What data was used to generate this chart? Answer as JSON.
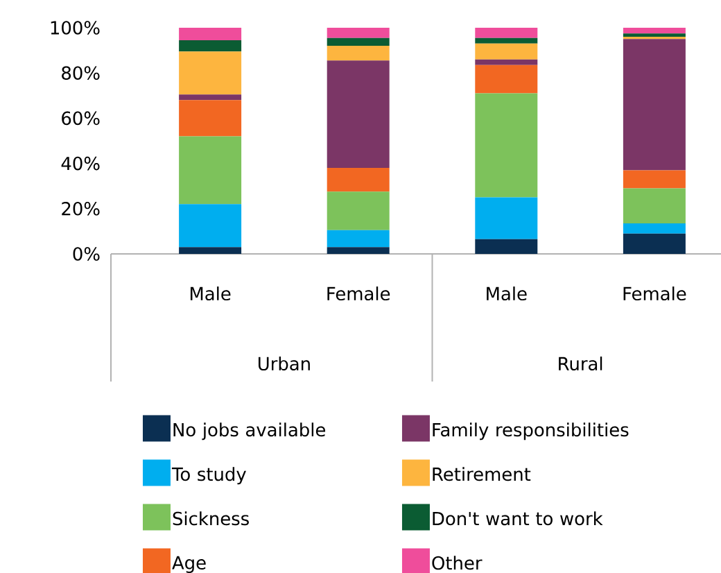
{
  "chart_data": {
    "type": "bar",
    "stacked": true,
    "categories": [
      "Male",
      "Female",
      "Male",
      "Female"
    ],
    "annotations": [
      "Urban",
      "Rural"
    ],
    "series": [
      {
        "name": "No jobs available",
        "color": "#0b2f52",
        "values": [
          3,
          3,
          6.5,
          9
        ]
      },
      {
        "name": "To study",
        "color": "#00aeef",
        "values": [
          19,
          7.5,
          18.5,
          4.5
        ]
      },
      {
        "name": "Sickness",
        "color": "#7dc25b",
        "values": [
          30,
          17,
          46,
          15.5
        ]
      },
      {
        "name": "Age",
        "color": "#f26722",
        "values": [
          16,
          10.5,
          12.5,
          8
        ]
      },
      {
        "name": "Family responsibilities",
        "color": "#7b3666",
        "values": [
          2.5,
          47.5,
          2.5,
          58
        ]
      },
      {
        "name": "Retirement",
        "color": "#fdb53f",
        "values": [
          19,
          6.5,
          7,
          1
        ]
      },
      {
        "name": "Don't want to work",
        "color": "#0b5c33",
        "values": [
          5,
          3.5,
          2.5,
          1.5
        ]
      },
      {
        "name": "Other",
        "color": "#ef4d9b",
        "values": [
          5.5,
          4.5,
          4.5,
          2.5
        ]
      }
    ],
    "ylim": [
      0,
      100
    ],
    "yticks": [
      {
        "value": 0,
        "label": "0%"
      },
      {
        "value": 20,
        "label": "20%"
      },
      {
        "value": 40,
        "label": "40%"
      },
      {
        "value": 60,
        "label": "60%"
      },
      {
        "value": 80,
        "label": "80%"
      },
      {
        "value": 100,
        "label": "100%"
      }
    ],
    "legend": "bottom"
  }
}
